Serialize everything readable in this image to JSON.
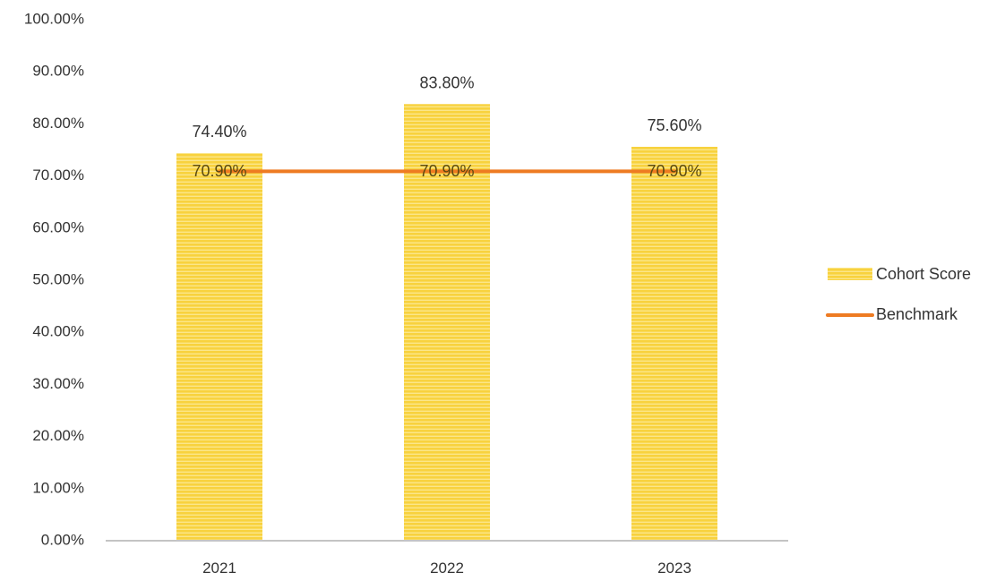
{
  "chart_data": {
    "type": "bar",
    "categories": [
      "2021",
      "2022",
      "2023"
    ],
    "series": [
      {
        "name": "Cohort Score",
        "type": "bar",
        "values": [
          74.4,
          83.8,
          75.6
        ],
        "labels": [
          "74.40%",
          "83.80%",
          "75.60%"
        ],
        "color": "#F7CC2C"
      },
      {
        "name": "Benchmark",
        "type": "line",
        "values": [
          70.9,
          70.9,
          70.9
        ],
        "labels": [
          "70.90%",
          "70.90%",
          "70.90%"
        ],
        "color": "#EE7B22"
      }
    ],
    "y_ticks": [
      "0.00%",
      "10.00%",
      "20.00%",
      "30.00%",
      "40.00%",
      "50.00%",
      "60.00%",
      "70.00%",
      "80.00%",
      "90.00%",
      "100.00%"
    ],
    "ylim": [
      0,
      100
    ],
    "grid": false,
    "legend": "right"
  }
}
